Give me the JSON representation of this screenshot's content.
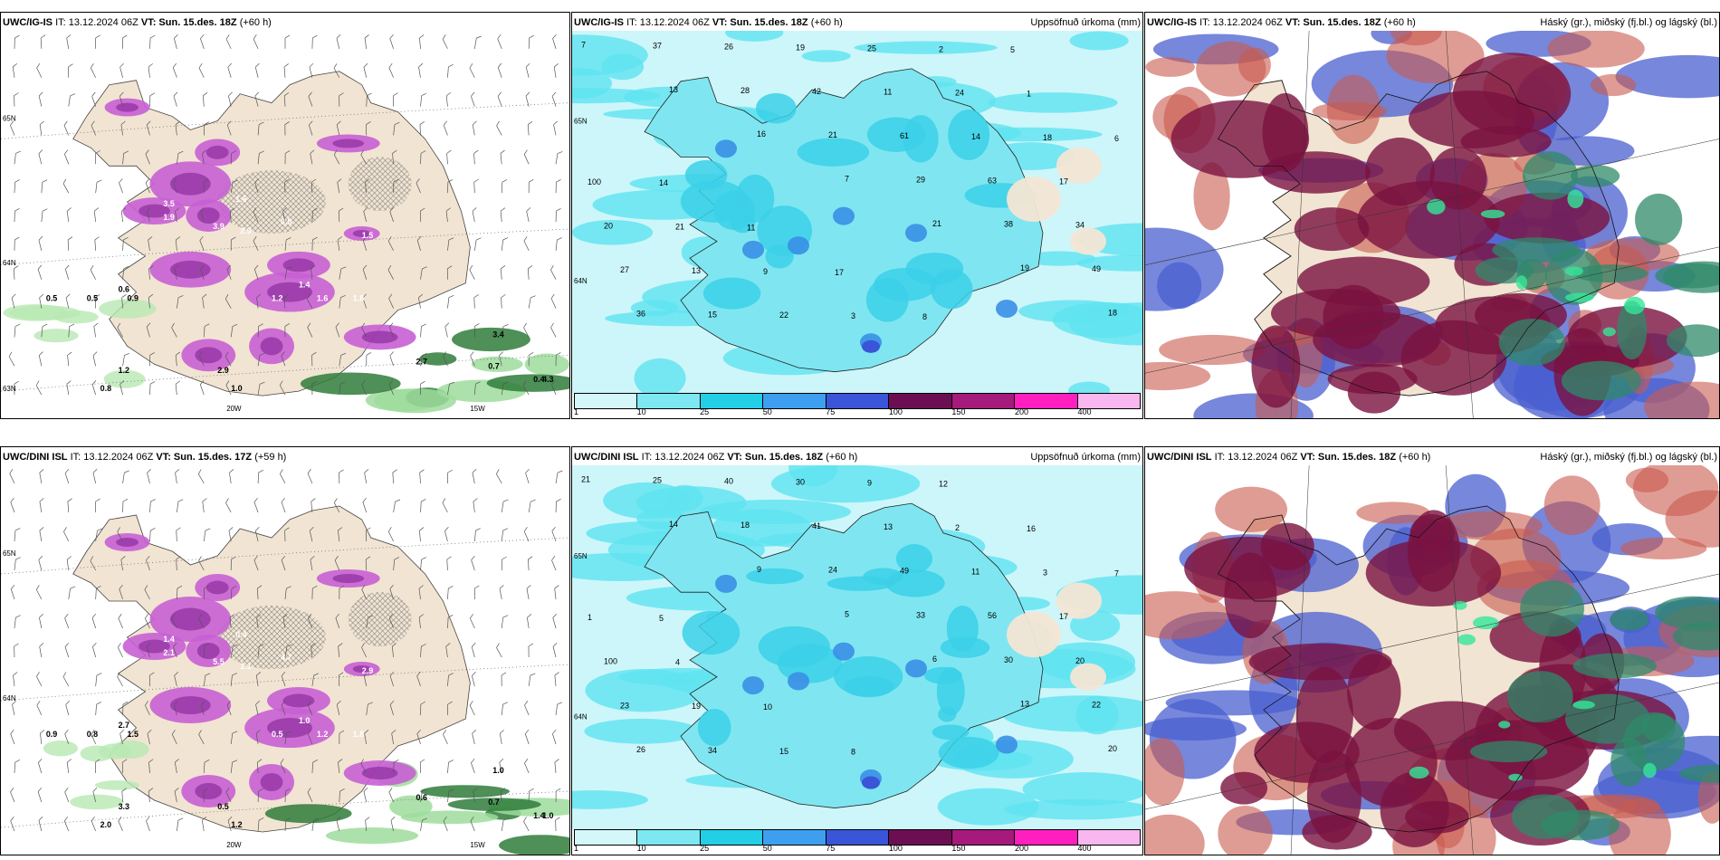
{
  "panels": [
    {
      "model": "UWC/IG-IS",
      "it": "IT: 13.12.2024 06Z",
      "vt": "VT: Sun. 15.des. 18Z",
      "lead": "(+60 h)",
      "right": "",
      "kind": "temp",
      "labels": [
        "0.7",
        "3.9",
        "1.9",
        "2.9",
        "1.6",
        "3.5",
        "0.5",
        "1.5",
        "1.4",
        "1.2",
        "1.6",
        "1.8",
        "0.6",
        "0.5",
        "0.9",
        "1.2",
        "0.8",
        "2.7",
        "3.4",
        "0.7",
        "0.4",
        "0.5",
        "4.3",
        "2.9",
        "1.0"
      ],
      "axis": [
        "20W",
        "15W",
        "65N",
        "64N",
        "63N"
      ]
    },
    {
      "model": "UWC/IG-IS",
      "it": "IT: 13.12.2024 06Z",
      "vt": "VT: Sun. 15.des. 18Z",
      "lead": "(+60 h)",
      "right": "Uppsöfnuð úrkoma (mm)",
      "kind": "precip",
      "labels": [
        "7",
        "13",
        "16",
        "7",
        "21",
        "19",
        "18",
        "37",
        "28",
        "21",
        "29",
        "38",
        "49",
        "36",
        "26",
        "42",
        "61",
        "63",
        "34",
        "27",
        "15",
        "19",
        "11",
        "14",
        "17",
        "20",
        "13",
        "22",
        "25",
        "24",
        "18",
        "100",
        "21",
        "9",
        "3",
        "2",
        "1",
        "6",
        "14",
        "11",
        "17",
        "8",
        "5"
      ],
      "axis": [
        "65N",
        "64N"
      ]
    },
    {
      "model": "UWC/IG-IS",
      "it": "IT: 13.12.2024 06Z",
      "vt": "VT: Sun. 15.des. 18Z",
      "lead": "(+60 h)",
      "right": "Háský (gr.), miðský (fj.bl.) og lágský (bl.)",
      "kind": "cloud",
      "labels": [],
      "axis": []
    },
    {
      "model": "UWC/DINI ISL",
      "it": "IT: 13.12.2024 06Z",
      "vt": "VT: Sun. 15.des. 17Z",
      "lead": "(+59 h)",
      "right": "",
      "kind": "temp",
      "labels": [
        "1.2",
        "5.5",
        "2.1",
        "1.1",
        "0.4",
        "1.4",
        "4.7",
        "2.9",
        "1.0",
        "0.5",
        "1.2",
        "1.8",
        "2.7",
        "0.9",
        "1.5",
        "3.3",
        "2.0",
        "0.6",
        "1.0",
        "0.7",
        "1.4",
        "0.8",
        "1.0",
        "0.5",
        "1.2"
      ],
      "axis": [
        "20W",
        "15W",
        "65N",
        "64N"
      ]
    },
    {
      "model": "UWC/DINI ISL",
      "it": "IT: 13.12.2024 06Z",
      "vt": "VT: Sun. 15.des. 18Z",
      "lead": "(+60 h)",
      "right": "Uppsöfnuð úrkoma (mm)",
      "kind": "precip",
      "labels": [
        "21",
        "14",
        "9",
        "5",
        "6",
        "13",
        "20",
        "25",
        "18",
        "24",
        "33",
        "30",
        "22",
        "26",
        "40",
        "41",
        "49",
        "56",
        "20",
        "23",
        "34",
        "30",
        "13",
        "11",
        "17",
        "100",
        "19",
        "15",
        "9",
        "2",
        "3",
        "1",
        "4",
        "10",
        "8",
        "12",
        "16",
        "7",
        "5"
      ],
      "axis": [
        "65N",
        "64N"
      ]
    },
    {
      "model": "UWC/DINI ISL",
      "it": "IT: 13.12.2024 06Z",
      "vt": "VT: Sun. 15.des. 18Z",
      "lead": "(+60 h)",
      "right": "Háský (gr.), miðský (fj.bl.) og lágský (bl.)",
      "kind": "cloud",
      "labels": [],
      "axis": []
    }
  ],
  "legend": {
    "ticks": [
      "1",
      "10",
      "25",
      "50",
      "75",
      "100",
      "150",
      "200",
      "400"
    ],
    "colors": [
      "#d4f7fa",
      "#7de8f2",
      "#22cfe6",
      "#3e9ff0",
      "#3a55d8",
      "#6b0f52",
      "#a51a7a",
      "#ff1fbf",
      "#f8b7ee"
    ]
  }
}
